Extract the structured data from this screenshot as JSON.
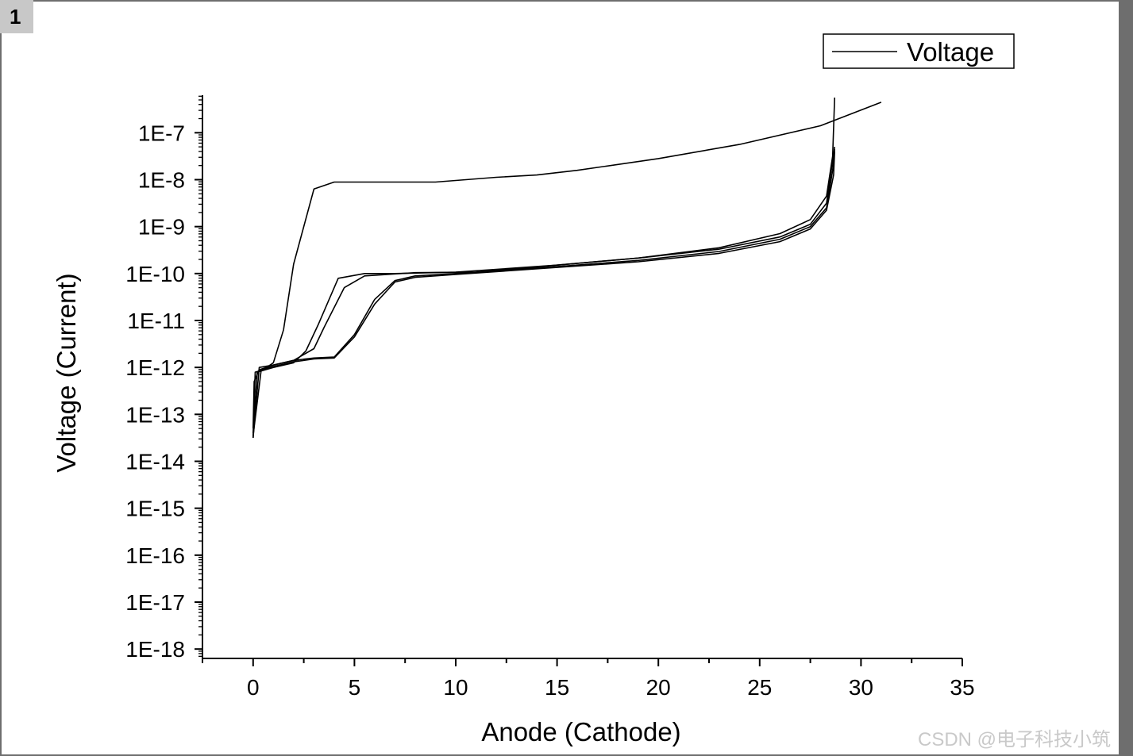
{
  "page": {
    "number": "1",
    "watermark": "CSDN @电子科技小筑"
  },
  "chart_data": {
    "type": "line",
    "xlabel": "Anode (Cathode)",
    "ylabel": "Voltage (Current)",
    "xlim": [
      -2.5,
      35
    ],
    "ylog_lim": [
      -18.2,
      -6.2
    ],
    "x_ticks": [
      0,
      5,
      10,
      15,
      20,
      25,
      30,
      35
    ],
    "x_tick_labels": [
      "0",
      "5",
      "10",
      "15",
      "20",
      "25",
      "30",
      "35"
    ],
    "y_ticks_log": [
      -7,
      -8,
      -9,
      -10,
      -11,
      -12,
      -13,
      -14,
      -15,
      -16,
      -17,
      -18
    ],
    "y_tick_labels": [
      "1E-7",
      "1E-8",
      "1E-9",
      "1E-10",
      "1E-11",
      "1E-12",
      "1E-13",
      "1E-14",
      "1E-15",
      "1E-16",
      "1E-17",
      "1E-18"
    ],
    "legend": {
      "position": "top-right",
      "label": "Voltage"
    },
    "series": [
      {
        "name": "Voltage",
        "points": [
          [
            0,
            -13.5
          ],
          [
            0.1,
            -12.1
          ],
          [
            0.5,
            -12.05
          ],
          [
            1,
            -11.9
          ],
          [
            1.5,
            -11.2
          ],
          [
            2,
            -9.8
          ],
          [
            3,
            -8.2
          ],
          [
            4,
            -8.05
          ],
          [
            6,
            -8.05
          ],
          [
            9,
            -8.05
          ],
          [
            12,
            -7.95
          ],
          [
            14,
            -7.9
          ],
          [
            16,
            -7.8
          ],
          [
            20,
            -7.55
          ],
          [
            24,
            -7.25
          ],
          [
            28,
            -6.85
          ],
          [
            31,
            -6.35
          ]
        ]
      },
      {
        "name": "Voltage",
        "points": [
          [
            0,
            -13.3
          ],
          [
            0.05,
            -12.3
          ],
          [
            0.3,
            -12.05
          ],
          [
            1,
            -11.95
          ],
          [
            2,
            -11.85
          ],
          [
            3,
            -11.6
          ],
          [
            3.5,
            -11.15
          ],
          [
            4.5,
            -10.3
          ],
          [
            5.5,
            -10.05
          ],
          [
            8,
            -9.98
          ],
          [
            11,
            -9.97
          ],
          [
            15,
            -9.82
          ],
          [
            19,
            -9.67
          ],
          [
            23,
            -9.45
          ],
          [
            26,
            -9.15
          ],
          [
            27.5,
            -8.85
          ],
          [
            28.3,
            -8.35
          ],
          [
            28.6,
            -7.5
          ],
          [
            28.7,
            -6.25
          ]
        ]
      },
      {
        "name": "Voltage",
        "points": [
          [
            0,
            -13.4
          ],
          [
            0.2,
            -12.1
          ],
          [
            1,
            -12.0
          ],
          [
            2,
            -11.9
          ],
          [
            2.6,
            -11.65
          ],
          [
            3.2,
            -11.1
          ],
          [
            4.2,
            -10.1
          ],
          [
            5.5,
            -10.0
          ],
          [
            7,
            -10.0
          ],
          [
            10,
            -9.97
          ],
          [
            15,
            -9.82
          ],
          [
            19,
            -9.67
          ],
          [
            23,
            -9.48
          ],
          [
            26,
            -9.22
          ],
          [
            27.5,
            -8.95
          ],
          [
            28.3,
            -8.5
          ],
          [
            28.6,
            -7.6
          ],
          [
            28.7,
            -7.3
          ]
        ]
      },
      {
        "name": "Voltage",
        "points": [
          [
            0,
            -13.5
          ],
          [
            0.3,
            -12.0
          ],
          [
            1,
            -11.95
          ],
          [
            2,
            -11.85
          ],
          [
            3,
            -11.8
          ],
          [
            4,
            -11.78
          ],
          [
            5,
            -11.3
          ],
          [
            6,
            -10.55
          ],
          [
            7,
            -10.15
          ],
          [
            8,
            -10.05
          ],
          [
            10,
            -10.0
          ],
          [
            15,
            -9.85
          ],
          [
            19,
            -9.72
          ],
          [
            23,
            -9.53
          ],
          [
            26,
            -9.27
          ],
          [
            27.5,
            -9.0
          ],
          [
            28.3,
            -8.6
          ],
          [
            28.6,
            -7.8
          ],
          [
            28.7,
            -7.35
          ]
        ]
      },
      {
        "name": "Voltage",
        "points": [
          [
            0,
            -13.45
          ],
          [
            0.4,
            -12.05
          ],
          [
            1,
            -11.98
          ],
          [
            2,
            -11.88
          ],
          [
            3,
            -11.82
          ],
          [
            4,
            -11.8
          ],
          [
            5,
            -11.35
          ],
          [
            6,
            -10.65
          ],
          [
            7,
            -10.18
          ],
          [
            8,
            -10.08
          ],
          [
            10,
            -10.02
          ],
          [
            15,
            -9.87
          ],
          [
            19,
            -9.75
          ],
          [
            23,
            -9.57
          ],
          [
            26,
            -9.32
          ],
          [
            27.5,
            -9.05
          ],
          [
            28.3,
            -8.65
          ],
          [
            28.65,
            -7.9
          ],
          [
            28.7,
            -7.4
          ]
        ]
      }
    ]
  }
}
